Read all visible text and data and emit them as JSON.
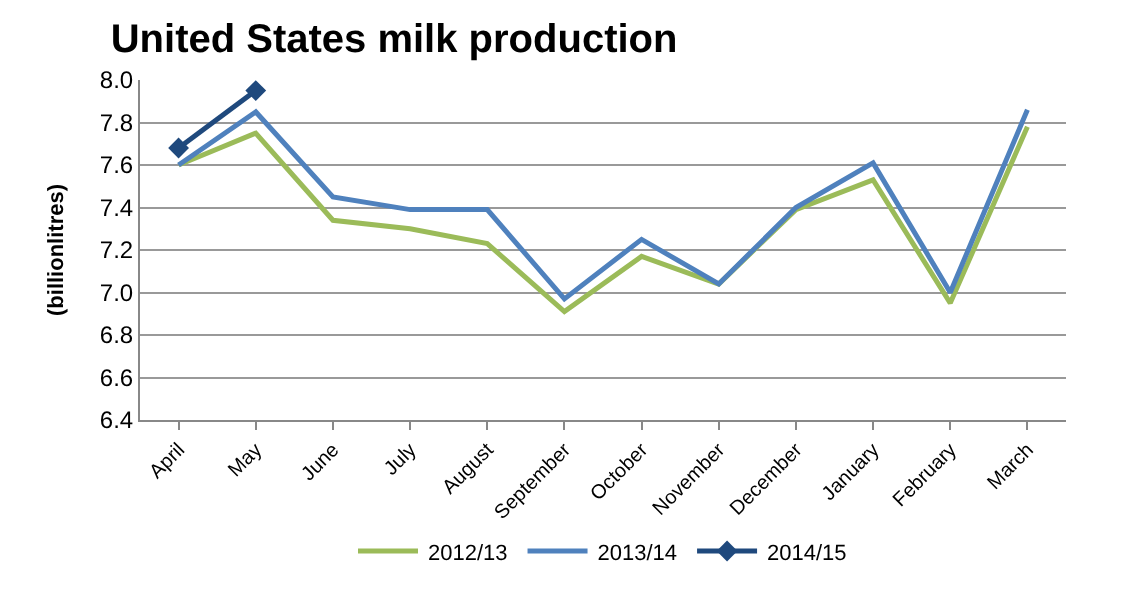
{
  "chart_data": {
    "type": "line",
    "title": "United States milk production",
    "ylabel": "(billionlitres)",
    "categories": [
      "April",
      "May",
      "June",
      "July",
      "August",
      "September",
      "October",
      "November",
      "December",
      "January",
      "February",
      "March"
    ],
    "series": [
      {
        "name": "2012/13",
        "color": "#9bbb59",
        "values": [
          7.6,
          7.75,
          7.34,
          7.3,
          7.23,
          6.91,
          7.17,
          7.04,
          7.39,
          7.53,
          6.95,
          7.78
        ]
      },
      {
        "name": "2013/14",
        "color": "#4f81bd",
        "values": [
          7.6,
          7.85,
          7.45,
          7.39,
          7.39,
          6.97,
          7.25,
          7.04,
          7.4,
          7.61,
          7.0,
          7.86
        ]
      },
      {
        "name": "2014/15",
        "color": "#1f497d",
        "marker": "diamond",
        "values": [
          7.68,
          7.95,
          null,
          null,
          null,
          null,
          null,
          null,
          null,
          null,
          null,
          null
        ]
      }
    ],
    "ylim": [
      6.4,
      8.0
    ],
    "yticks": [
      6.4,
      6.6,
      6.8,
      {
        "value": 7.0,
        "label": "7.0"
      },
      7.2,
      7.4,
      7.6,
      7.8,
      {
        "value": 8.0,
        "label": "8.0"
      }
    ],
    "grid": "y",
    "legend": "bottom",
    "marker": "none",
    "line_style": "solid"
  }
}
